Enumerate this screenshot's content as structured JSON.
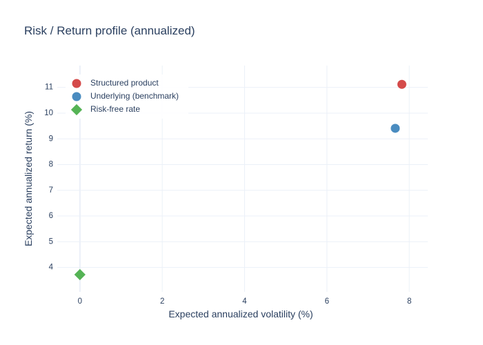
{
  "chart_data": {
    "type": "scatter",
    "title": "Risk / Return profile (annualized)",
    "xlabel": "Expected annualized volatility (%)",
    "ylabel": "Expected annualized return (%)",
    "xlim": [
      -0.55,
      8.45
    ],
    "ylim": [
      3.05,
      11.85
    ],
    "xticks": [
      0,
      2,
      4,
      6,
      8
    ],
    "yticks": [
      4,
      5,
      6,
      7,
      8,
      9,
      10,
      11
    ],
    "grid": true,
    "legend_position": "top-left",
    "series": [
      {
        "name": "Structured product",
        "color": "#d44a4a",
        "marker": "circle",
        "points": [
          {
            "x": 7.82,
            "y": 11.12
          }
        ]
      },
      {
        "name": "Underlying (benchmark)",
        "color": "#4a8cc0",
        "marker": "circle",
        "points": [
          {
            "x": 7.66,
            "y": 9.41
          }
        ]
      },
      {
        "name": "Risk-free rate",
        "color": "#55b355",
        "marker": "diamond",
        "points": [
          {
            "x": 0.0,
            "y": 3.72
          }
        ]
      }
    ]
  }
}
